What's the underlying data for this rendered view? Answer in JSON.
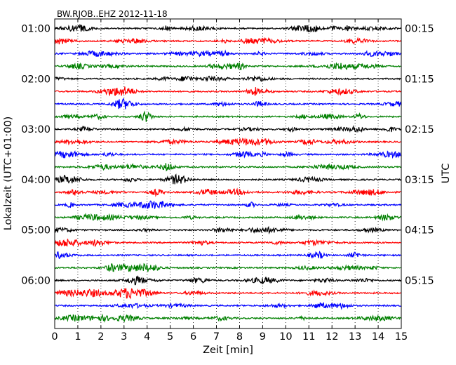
{
  "chart_data": {
    "type": "line",
    "title": "BW.RJOB..EHZ 2012-11-18",
    "xlabel": "Zeit  [min]",
    "ylabel_left": "Lokalzeit (UTC+01:00)",
    "ylabel_right": "UTC",
    "xlim": [
      0,
      15
    ],
    "x_ticks": [
      "0",
      "1",
      "2",
      "3",
      "4",
      "5",
      "6",
      "7",
      "8",
      "9",
      "10",
      "11",
      "12",
      "13",
      "14",
      "15"
    ],
    "grid_x": true,
    "row_count": 24,
    "row_colors": [
      "#000000",
      "#ff0000",
      "#0000ff",
      "#008000"
    ],
    "left_tick_labels": [
      "01:00",
      "02:00",
      "03:00",
      "04:00",
      "05:00",
      "06:00"
    ],
    "right_tick_labels": [
      "00:15",
      "01:15",
      "02:15",
      "03:15",
      "04:15",
      "05:15"
    ],
    "label_row_indices": [
      0,
      4,
      8,
      12,
      16,
      20
    ]
  }
}
